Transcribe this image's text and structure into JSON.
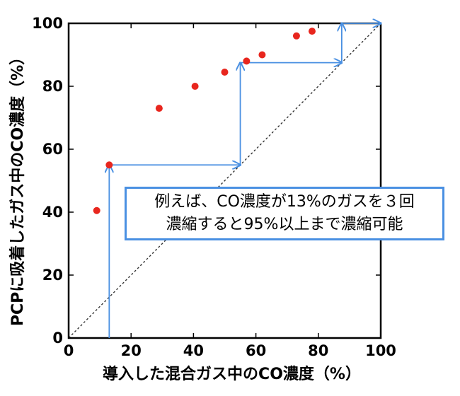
{
  "chart_data": {
    "type": "scatter",
    "xlabel": "導入した混合ガス中のCO濃度（%）",
    "ylabel": "PCPに吸着したガス中のCO濃度（%）",
    "xlim": [
      0,
      100
    ],
    "ylim": [
      0,
      100
    ],
    "x_ticks": [
      "0",
      "20",
      "40",
      "60",
      "80",
      "100"
    ],
    "y_ticks": [
      "0",
      "20",
      "40",
      "60",
      "80",
      "100"
    ],
    "grid": false,
    "diagonal_reference": true,
    "points": [
      {
        "x": 9,
        "y": 40.5
      },
      {
        "x": 13,
        "y": 55
      },
      {
        "x": 29,
        "y": 73
      },
      {
        "x": 40.5,
        "y": 80
      },
      {
        "x": 50,
        "y": 84.5
      },
      {
        "x": 57,
        "y": 88
      },
      {
        "x": 62,
        "y": 90
      },
      {
        "x": 73,
        "y": 96
      },
      {
        "x": 78,
        "y": 97.5
      }
    ],
    "staircase": [
      {
        "x": 13,
        "y": 0
      },
      {
        "x": 13,
        "y": 55
      },
      {
        "x": 55,
        "y": 55
      },
      {
        "x": 55,
        "y": 87.5
      },
      {
        "x": 87.5,
        "y": 87.5
      },
      {
        "x": 87.5,
        "y": 100
      },
      {
        "x": 100,
        "y": 100
      }
    ],
    "annotation": {
      "line1": "例えば、CO濃度が13%のガスを３回",
      "line2": "濃縮すると95%以上まで濃縮可能"
    }
  },
  "colors": {
    "points": "#e8261e",
    "staircase": "#4a90e2",
    "diagonal": "#333333",
    "axes": "#000000"
  }
}
